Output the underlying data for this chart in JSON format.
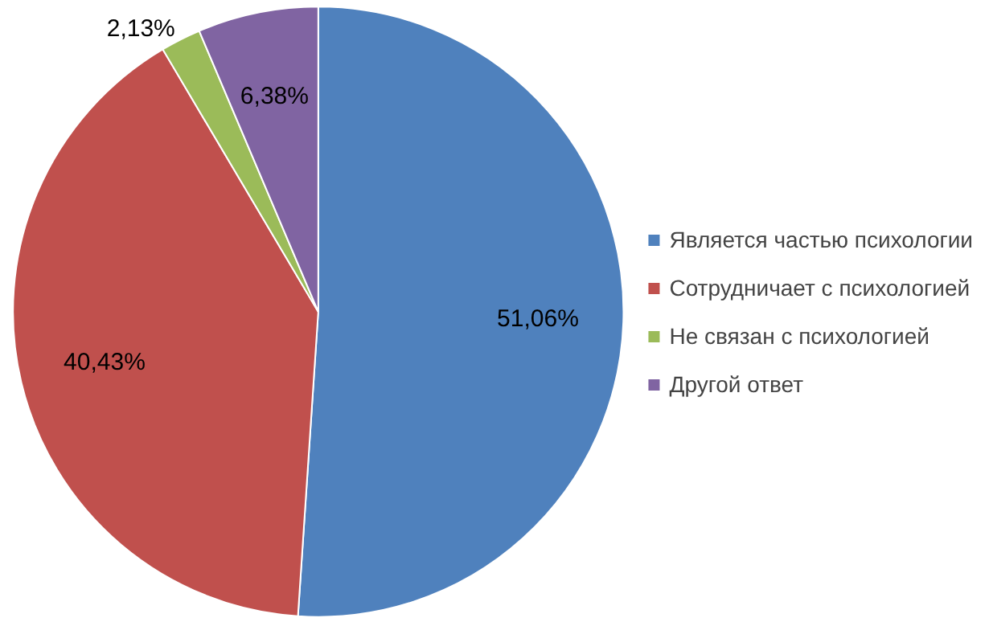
{
  "chart_data": {
    "type": "pie",
    "categories": [
      "Является частью психологии",
      "Сотрудничает с психологией",
      "Не связан с психологией",
      "Другой ответ"
    ],
    "values": [
      51.06,
      40.43,
      2.13,
      6.38
    ],
    "colors": [
      "#4f81bd",
      "#c0504d",
      "#9bbb59",
      "#8064a2"
    ],
    "value_labels": [
      "51,06%",
      "40,43%",
      "2,13%",
      "6,38%"
    ],
    "legend": "right"
  }
}
